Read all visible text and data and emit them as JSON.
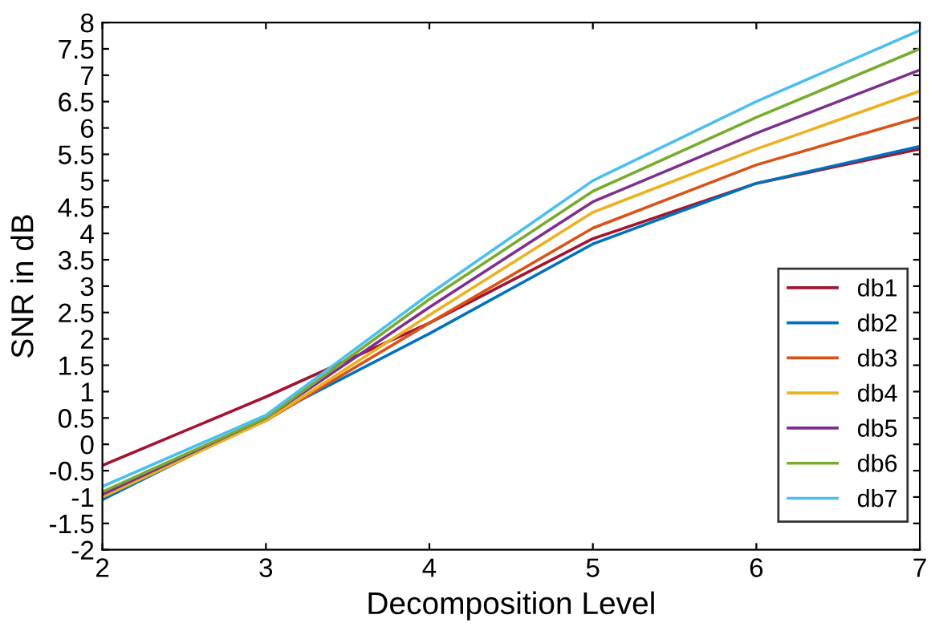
{
  "chart_data": {
    "type": "line",
    "xlabel": "Decomposition Level",
    "ylabel": "SNR in dB",
    "x": [
      2,
      3,
      4,
      5,
      6,
      7
    ],
    "series": [
      {
        "name": "db1",
        "color": "#a2142f",
        "values": [
          -0.4,
          0.9,
          2.3,
          3.9,
          4.95,
          5.6
        ]
      },
      {
        "name": "db2",
        "color": "#0072bd",
        "values": [
          -1.05,
          0.5,
          2.1,
          3.8,
          4.95,
          5.65
        ]
      },
      {
        "name": "db3",
        "color": "#d95319",
        "values": [
          -0.95,
          0.45,
          2.3,
          4.1,
          5.3,
          6.2
        ]
      },
      {
        "name": "db4",
        "color": "#edb120",
        "values": [
          -1.0,
          0.45,
          2.45,
          4.4,
          5.6,
          6.7
        ]
      },
      {
        "name": "db5",
        "color": "#7e2f8e",
        "values": [
          -0.95,
          0.5,
          2.6,
          4.6,
          5.9,
          7.1
        ]
      },
      {
        "name": "db6",
        "color": "#77ac30",
        "values": [
          -0.9,
          0.5,
          2.75,
          4.8,
          6.2,
          7.5
        ]
      },
      {
        "name": "db7",
        "color": "#4dbeee",
        "values": [
          -0.8,
          0.55,
          2.85,
          5.0,
          6.5,
          7.85
        ]
      }
    ],
    "xlim": [
      2,
      7
    ],
    "xticks": [
      2,
      3,
      4,
      5,
      6,
      7
    ],
    "ylim": [
      -2,
      8
    ],
    "yticks": [
      -2,
      -1.5,
      -1,
      -0.5,
      0,
      0.5,
      1,
      1.5,
      2,
      2.5,
      3,
      3.5,
      4,
      4.5,
      5,
      5.5,
      6,
      6.5,
      7,
      7.5,
      8
    ],
    "grid": false,
    "legend": "bottom right",
    "marker": "none",
    "line_style": "solid"
  }
}
